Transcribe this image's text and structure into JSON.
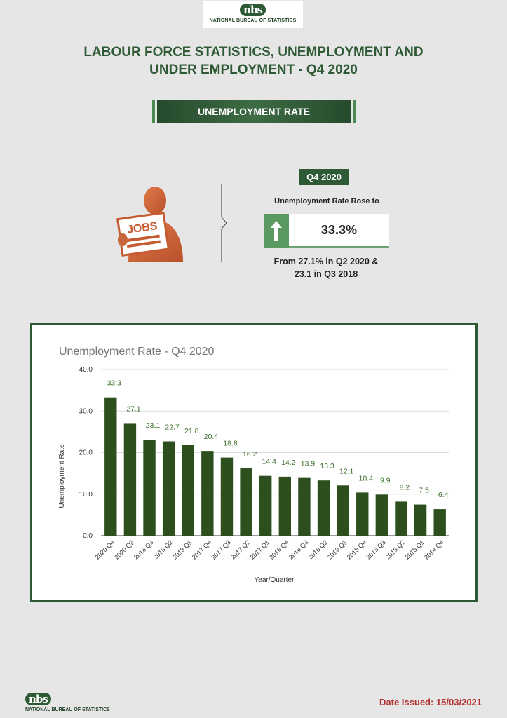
{
  "header": {
    "logo_mark": "nbs",
    "logo_text": "NATIONAL BUREAU OF STATISTICS",
    "title_line1": "LABOUR FORCE STATISTICS, UNEMPLOYMENT AND",
    "title_line2": "UNDER EMPLOYMENT - Q4 2020",
    "banner": "UNEMPLOYMENT RATE"
  },
  "highlight": {
    "badge": "Q4 2020",
    "rose_text": "Unemployment Rate Rose to",
    "value": "33.3%",
    "from_line1": "From 27.1% in Q2 2020 &",
    "from_line2": "23.1 in Q3 2018",
    "icon_label": "JOBS"
  },
  "chart_data": {
    "type": "bar",
    "title": "Unemployment Rate - Q4 2020",
    "xlabel": "Year/Quarter",
    "ylabel": "Unemployment Rate",
    "ylim": [
      0,
      40
    ],
    "yticks": [
      "0.0",
      "10.0",
      "20.0",
      "30.0",
      "40.0"
    ],
    "grid": true,
    "categories": [
      "2020 Q4",
      "2020 Q2",
      "2018 Q3",
      "2018 Q2",
      "2018 Q1",
      "2017 Q4",
      "2017 Q3",
      "2017 Q2",
      "2017 Q1",
      "2016 Q4",
      "2016 Q3",
      "2016 Q2",
      "2016 Q1",
      "2015 Q4",
      "2015 Q3",
      "2015 Q2",
      "2015 Q1",
      "2014 Q4"
    ],
    "values": [
      33.3,
      27.1,
      23.1,
      22.7,
      21.8,
      20.4,
      18.8,
      16.2,
      14.4,
      14.2,
      13.9,
      13.3,
      12.1,
      10.4,
      9.9,
      8.2,
      7.5,
      6.4
    ],
    "value_labels": [
      "33.3",
      "27.1",
      "23.1",
      "22.7",
      "21.8",
      "20.4",
      "18.8",
      "16.2",
      "14.4",
      "14.2",
      "13.9",
      "13.3",
      "12.1",
      "10.4",
      "9.9",
      "8.2",
      "7.5",
      "6.4"
    ],
    "bar_color": "#2d4f1e",
    "label_color": "#3c6e2a"
  },
  "footer": {
    "logo_mark": "nbs",
    "logo_text": "NATIONAL BUREAU OF STATISTICS",
    "date_issued": "Date Issued: 15/03/2021"
  }
}
